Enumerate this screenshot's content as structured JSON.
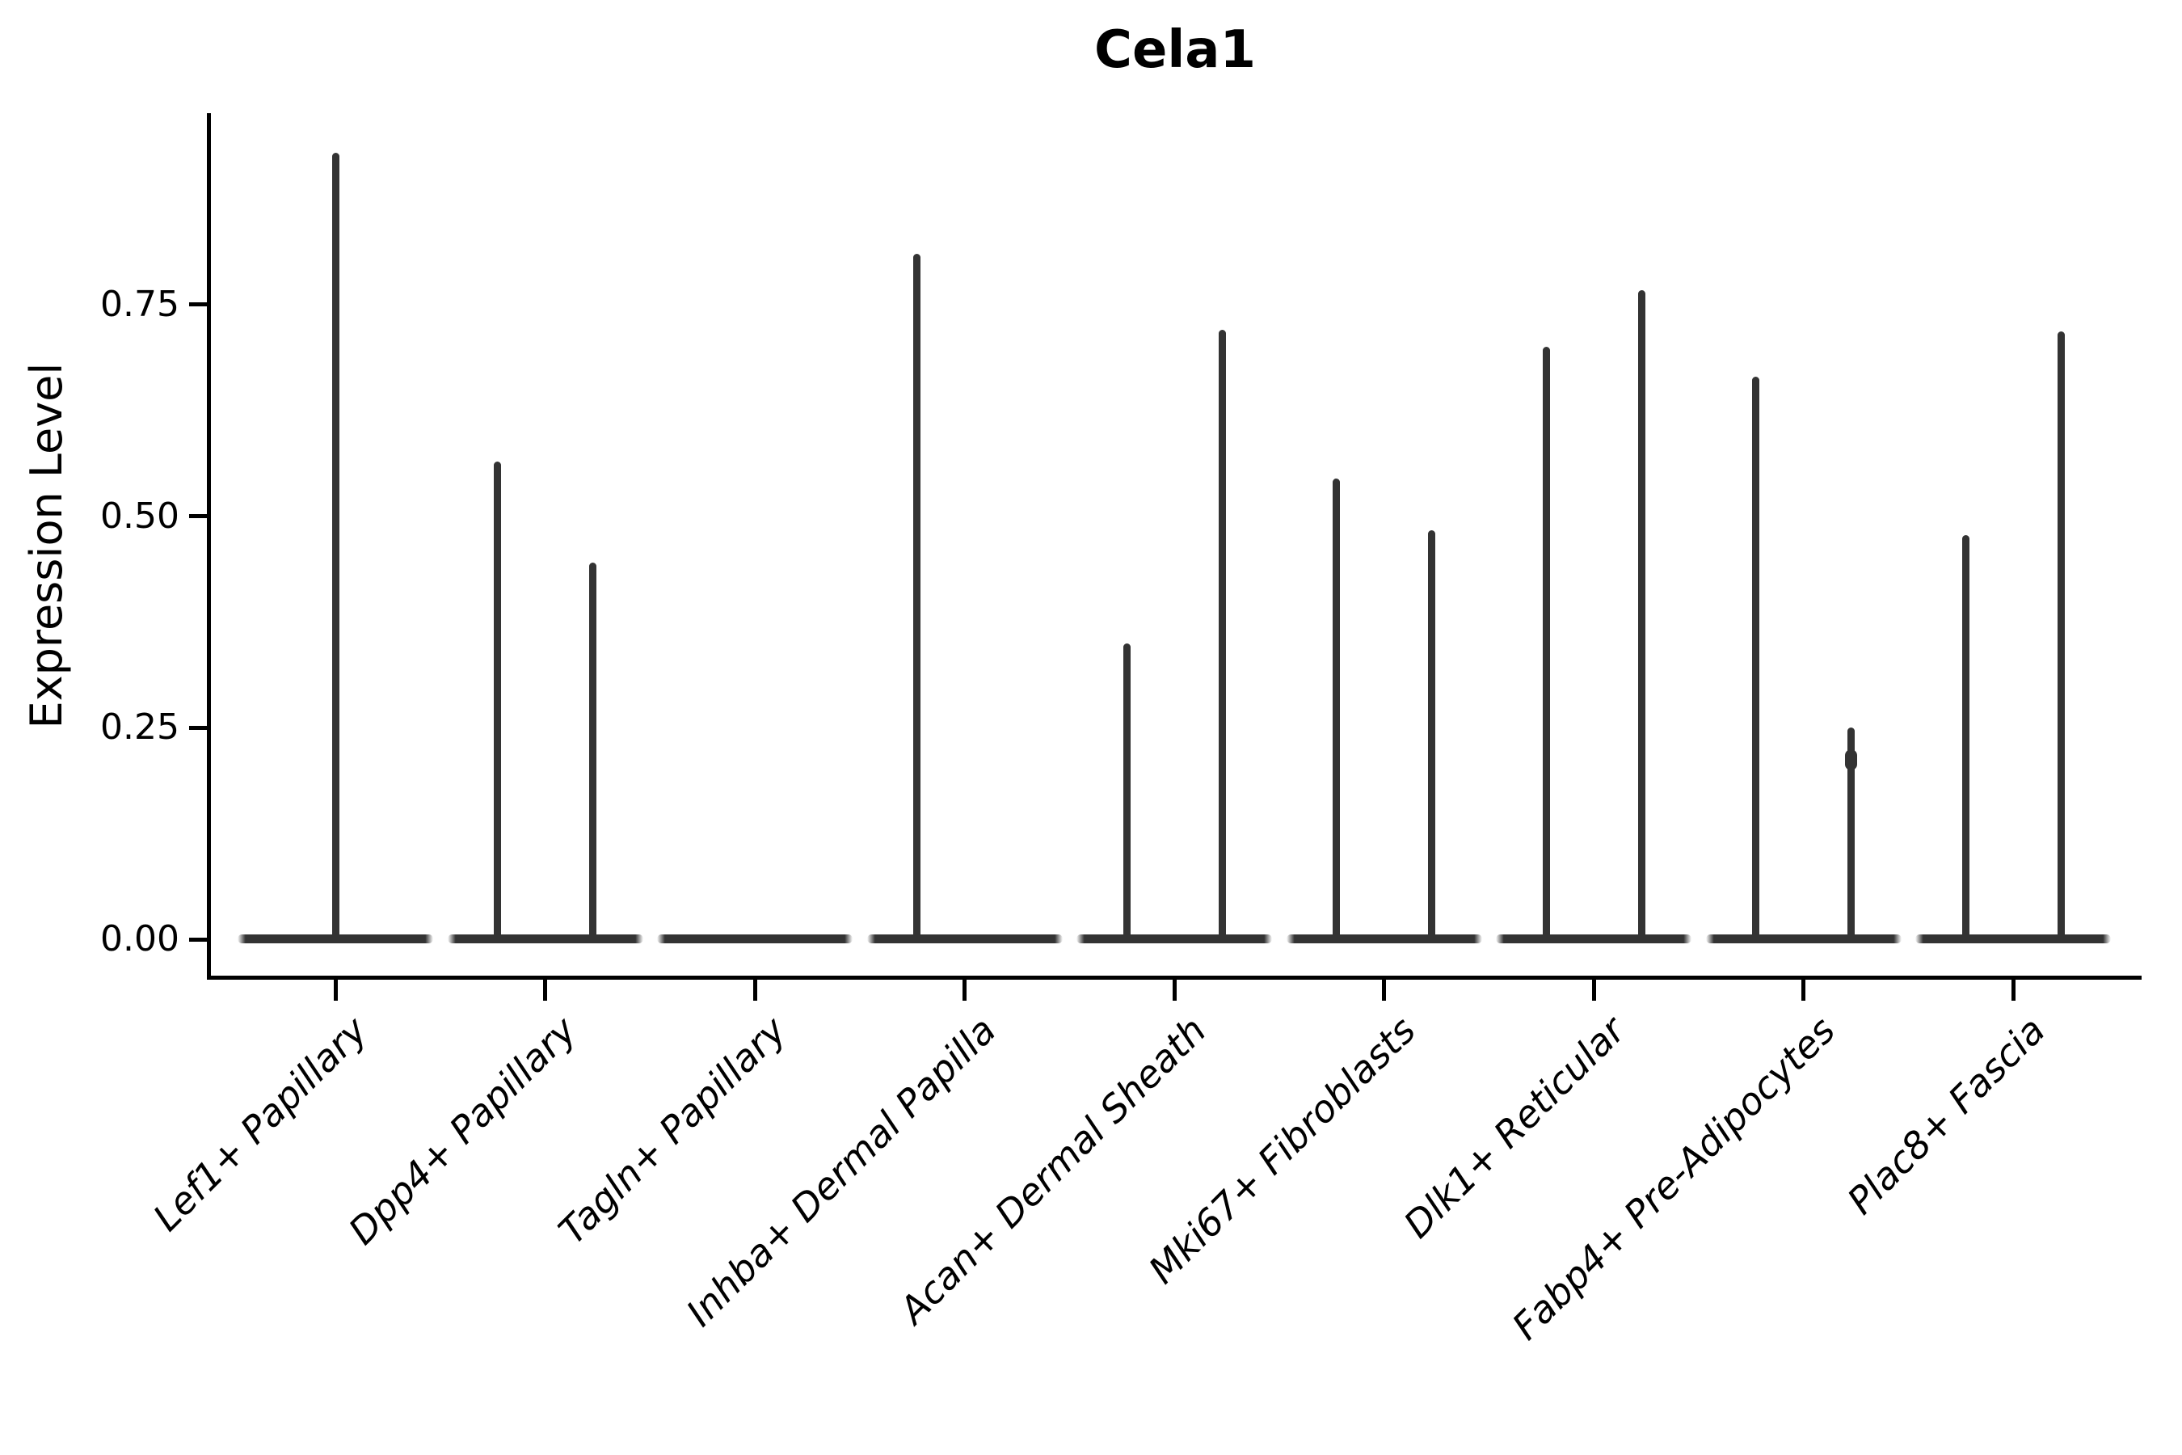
{
  "chart_data": {
    "type": "violin",
    "title": "Cela1",
    "xlabel": "",
    "ylabel": "Expression Level",
    "grid": false,
    "legend": "none",
    "ylim": [
      0,
      0.977
    ],
    "yticks": [
      {
        "label": "0.00",
        "value": 0.0
      },
      {
        "label": "0.25",
        "value": 0.25
      },
      {
        "label": "0.50",
        "value": 0.5
      },
      {
        "label": "0.75",
        "value": 0.75
      }
    ],
    "categories": [
      "Lef1+ Papillary",
      "Dpp4+ Papillary",
      "Tagln+ Papillary",
      "Inhba+ Dermal Papilla",
      "Acan+ Dermal Sheath",
      "Mki67+ Fibroblasts",
      "Dlk1+ Reticular",
      "Fabp4+ Pre-Adipocytes",
      "Plac8+ Fascia"
    ],
    "violins": [
      {
        "category": "Lef1+ Papillary",
        "baseline_value": 0,
        "spikes": [
          {
            "pos": "center",
            "max": 0.93
          }
        ]
      },
      {
        "category": "Dpp4+ Papillary",
        "baseline_value": 0,
        "spikes": [
          {
            "pos": "left",
            "max": 0.565
          },
          {
            "pos": "right",
            "max": 0.445
          }
        ]
      },
      {
        "category": "Tagln+ Papillary",
        "baseline_value": 0,
        "spikes": []
      },
      {
        "category": "Inhba+ Dermal Papilla",
        "baseline_value": 0,
        "spikes": [
          {
            "pos": "left",
            "max": 0.81
          }
        ]
      },
      {
        "category": "Acan+ Dermal Sheath",
        "baseline_value": 0,
        "spikes": [
          {
            "pos": "left",
            "max": 0.35
          },
          {
            "pos": "right",
            "max": 0.72
          }
        ]
      },
      {
        "category": "Mki67+ Fibroblasts",
        "baseline_value": 0,
        "spikes": [
          {
            "pos": "left",
            "max": 0.545
          },
          {
            "pos": "right",
            "max": 0.483
          }
        ]
      },
      {
        "category": "Dlk1+ Reticular",
        "baseline_value": 0,
        "spikes": [
          {
            "pos": "left",
            "max": 0.7
          },
          {
            "pos": "right",
            "max": 0.767
          }
        ]
      },
      {
        "category": "Fabp4+ Pre-Adipocytes",
        "baseline_value": 0,
        "spikes": [
          {
            "pos": "left",
            "max": 0.665
          },
          {
            "pos": "right",
            "max": 0.25,
            "bead": 0.212
          }
        ]
      },
      {
        "category": "Plac8+ Fascia",
        "baseline_value": 0,
        "spikes": [
          {
            "pos": "left",
            "max": 0.478
          },
          {
            "pos": "right",
            "max": 0.718
          }
        ]
      }
    ],
    "colors": {
      "violin": "#333333",
      "axis": "#000000",
      "text": "#000000",
      "background": "#ffffff"
    }
  }
}
